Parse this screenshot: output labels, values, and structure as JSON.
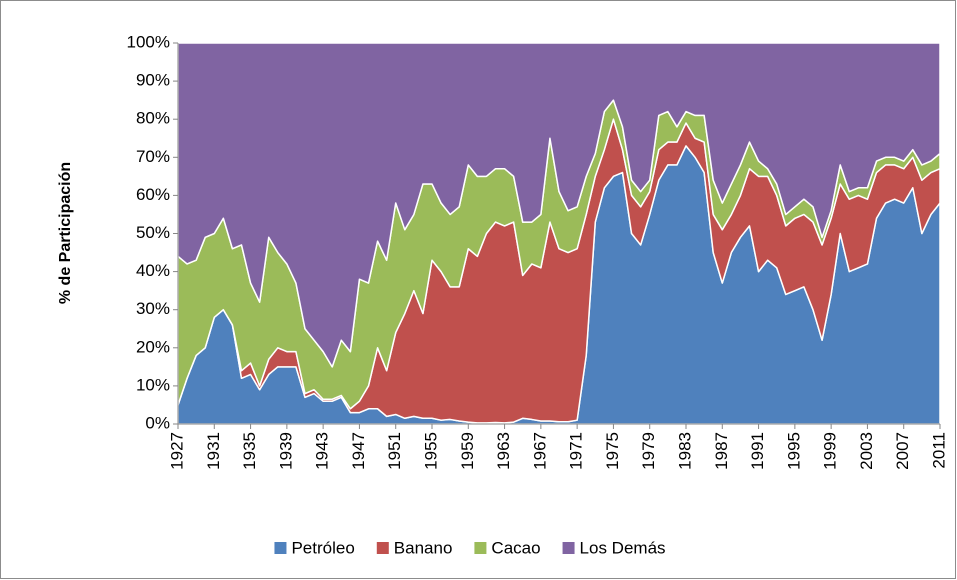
{
  "chart_data": {
    "type": "stacked_area",
    "y_label": "% de Participación",
    "x": [
      1927,
      1928,
      1929,
      1930,
      1931,
      1932,
      1933,
      1934,
      1935,
      1936,
      1937,
      1938,
      1939,
      1940,
      1941,
      1942,
      1943,
      1944,
      1945,
      1946,
      1947,
      1948,
      1949,
      1950,
      1951,
      1952,
      1953,
      1954,
      1955,
      1956,
      1957,
      1958,
      1959,
      1960,
      1961,
      1962,
      1963,
      1964,
      1965,
      1966,
      1967,
      1968,
      1969,
      1970,
      1971,
      1972,
      1973,
      1974,
      1975,
      1976,
      1977,
      1978,
      1979,
      1980,
      1981,
      1982,
      1983,
      1984,
      1985,
      1986,
      1987,
      1988,
      1989,
      1990,
      1991,
      1992,
      1993,
      1994,
      1995,
      1996,
      1997,
      1998,
      1999,
      2000,
      2001,
      2002,
      2003,
      2004,
      2005,
      2006,
      2007,
      2008,
      2009,
      2010,
      2011
    ],
    "series": [
      {
        "name": "Petróleo",
        "color": "#4f81bd",
        "values": [
          5,
          12,
          18,
          20,
          28,
          30,
          26,
          12,
          13,
          9,
          13,
          15,
          15,
          15,
          7,
          8,
          6,
          6,
          7,
          3,
          3,
          4,
          4,
          2,
          2.5,
          1.5,
          2,
          1.5,
          1.5,
          1,
          1.2,
          0.8,
          0.5,
          0.3,
          0.3,
          0.4,
          0.3,
          0.5,
          1.5,
          1.2,
          0.8,
          0.8,
          0.6,
          0.6,
          1,
          18,
          53,
          62,
          65,
          66,
          50,
          47,
          55,
          64,
          68,
          68,
          73,
          70,
          66,
          45,
          37,
          45,
          49,
          52,
          40,
          43,
          41,
          34,
          35,
          36,
          30,
          22,
          34,
          50,
          40,
          41,
          42,
          54,
          58,
          59,
          58,
          62,
          50,
          55,
          58
        ]
      },
      {
        "name": "Banano",
        "color": "#c0504d",
        "values": [
          0,
          0,
          0,
          0,
          0,
          0,
          0,
          2,
          3,
          1,
          4,
          5,
          4,
          4,
          1,
          1,
          0.5,
          0.5,
          0.5,
          1,
          3,
          6,
          16,
          12,
          21.5,
          27.5,
          33,
          27.5,
          41.5,
          39,
          34.8,
          35.2,
          45.5,
          43.7,
          49.7,
          52.6,
          51.7,
          52.5,
          37.5,
          40.8,
          40.2,
          52.2,
          45.4,
          44.4,
          45,
          37,
          12,
          10,
          15,
          6,
          10,
          10,
          6,
          8,
          6,
          6,
          6,
          5,
          8,
          10,
          14,
          10,
          11,
          15,
          25,
          22,
          19,
          18,
          19,
          19,
          23,
          25,
          20,
          13,
          19,
          19,
          17,
          12,
          10,
          9,
          9,
          8,
          14,
          11,
          9
        ]
      },
      {
        "name": "Cacao",
        "color": "#9bbb59",
        "values": [
          39,
          30,
          25,
          29,
          22,
          24,
          20,
          33,
          21,
          22,
          32,
          25,
          23,
          18,
          17,
          13,
          12.5,
          8.5,
          14.5,
          15,
          32,
          27,
          28,
          29,
          34,
          22,
          20,
          34,
          20,
          18,
          19,
          21,
          22,
          21,
          15,
          14,
          15,
          12,
          14,
          11,
          14,
          22,
          15,
          11,
          11,
          10,
          6,
          10,
          5,
          6,
          4,
          4,
          3,
          9,
          8,
          4,
          3,
          6,
          7,
          9,
          7,
          8,
          8,
          7,
          4,
          2,
          3,
          3,
          3,
          4,
          4,
          2,
          2,
          5,
          2,
          2,
          3,
          3,
          2,
          2,
          2,
          2,
          4,
          3,
          4
        ]
      },
      {
        "name": "Los Demás",
        "color": "#8064a2",
        "values": [
          56,
          58,
          57,
          51,
          50,
          46,
          54,
          53,
          63,
          68,
          51,
          55,
          58,
          63,
          75,
          78,
          81,
          85,
          78,
          81,
          62,
          63,
          52,
          57,
          42,
          49,
          45,
          37,
          37,
          42,
          45,
          43,
          32,
          35,
          35,
          33,
          33,
          35,
          47,
          47,
          45,
          25,
          39,
          44,
          43,
          35,
          29,
          18,
          15,
          22,
          36,
          39,
          36,
          19,
          18,
          22,
          18,
          19,
          19,
          36,
          42,
          37,
          32,
          26,
          31,
          33,
          37,
          45,
          43,
          41,
          43,
          51,
          44,
          32,
          39,
          38,
          38,
          31,
          30,
          30,
          31,
          28,
          32,
          31,
          29
        ]
      }
    ],
    "xlim": [
      1927,
      2011
    ],
    "xticks": [
      1927,
      1931,
      1935,
      1939,
      1943,
      1947,
      1951,
      1955,
      1959,
      1963,
      1967,
      1971,
      1975,
      1979,
      1983,
      1987,
      1991,
      1995,
      1999,
      2003,
      2007,
      2011
    ],
    "ylim": [
      0,
      100
    ],
    "yticks": [
      {
        "value": 0,
        "label": "0%"
      },
      {
        "value": 10,
        "label": "10%"
      },
      {
        "value": 20,
        "label": "20%"
      },
      {
        "value": 30,
        "label": "30%"
      },
      {
        "value": 40,
        "label": "40%"
      },
      {
        "value": 50,
        "label": "50%"
      },
      {
        "value": 60,
        "label": "60%"
      },
      {
        "value": 70,
        "label": "70%"
      },
      {
        "value": 80,
        "label": "80%"
      },
      {
        "value": 90,
        "label": "90%"
      },
      {
        "value": 100,
        "label": "100%"
      }
    ],
    "grid": false,
    "legend": "bottom"
  }
}
